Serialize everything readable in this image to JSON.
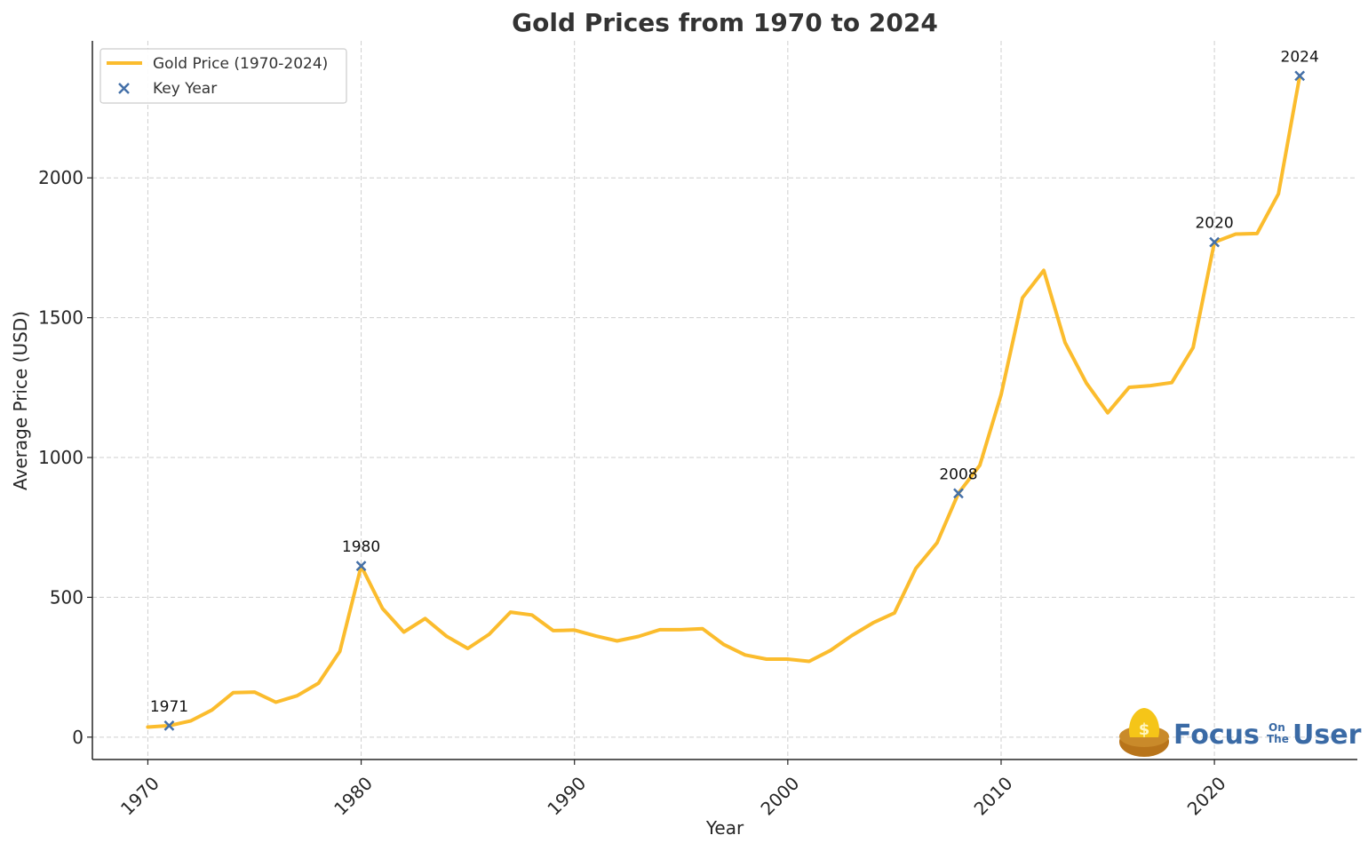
{
  "chart_data": {
    "type": "line",
    "title": "Gold Prices from 1970 to 2024",
    "xlabel": "Year",
    "ylabel": "Average Price (USD)",
    "xlim": [
      1967.4,
      2026.7
    ],
    "ylim": [
      -80,
      2490
    ],
    "xticks": [
      1970,
      1980,
      1990,
      2000,
      2010,
      2020
    ],
    "yticks": [
      0,
      500,
      1000,
      1500,
      2000
    ],
    "grid": true,
    "legend_position": "top-left",
    "series": [
      {
        "name": "Gold Price (1970-2024)",
        "color": "#fbbc2d",
        "x": [
          1970,
          1971,
          1972,
          1973,
          1974,
          1975,
          1976,
          1977,
          1978,
          1979,
          1980,
          1981,
          1982,
          1983,
          1984,
          1985,
          1986,
          1987,
          1988,
          1989,
          1990,
          1991,
          1992,
          1993,
          1994,
          1995,
          1996,
          1997,
          1998,
          1999,
          2000,
          2001,
          2002,
          2003,
          2004,
          2005,
          2006,
          2007,
          2008,
          2009,
          2010,
          2011,
          2012,
          2013,
          2014,
          2015,
          2016,
          2017,
          2018,
          2019,
          2020,
          2021,
          2022,
          2023,
          2024
        ],
        "y": [
          36,
          41,
          58,
          97,
          159,
          161,
          125,
          148,
          193,
          307,
          612,
          460,
          376,
          424,
          361,
          317,
          368,
          447,
          437,
          381,
          383,
          362,
          344,
          360,
          384,
          384,
          388,
          331,
          294,
          279,
          279,
          271,
          310,
          363,
          409,
          444,
          603,
          695,
          872,
          972,
          1225,
          1571,
          1669,
          1411,
          1266,
          1160,
          1251,
          1257,
          1268,
          1393,
          1770,
          1799,
          1801,
          1943,
          2365
        ]
      },
      {
        "name": "Key Year",
        "marker": "x",
        "color": "#4470a8",
        "x": [
          1971,
          1980,
          2008,
          2020,
          2024
        ],
        "y": [
          41,
          612,
          872,
          1770,
          2365
        ],
        "labels": [
          "1971",
          "1980",
          "2008",
          "2020",
          "2024"
        ]
      }
    ]
  },
  "logo": {
    "text_left": "Focus",
    "text_small_top": "On",
    "text_small_bottom": "The",
    "text_right": "User",
    "symbol": "$"
  }
}
